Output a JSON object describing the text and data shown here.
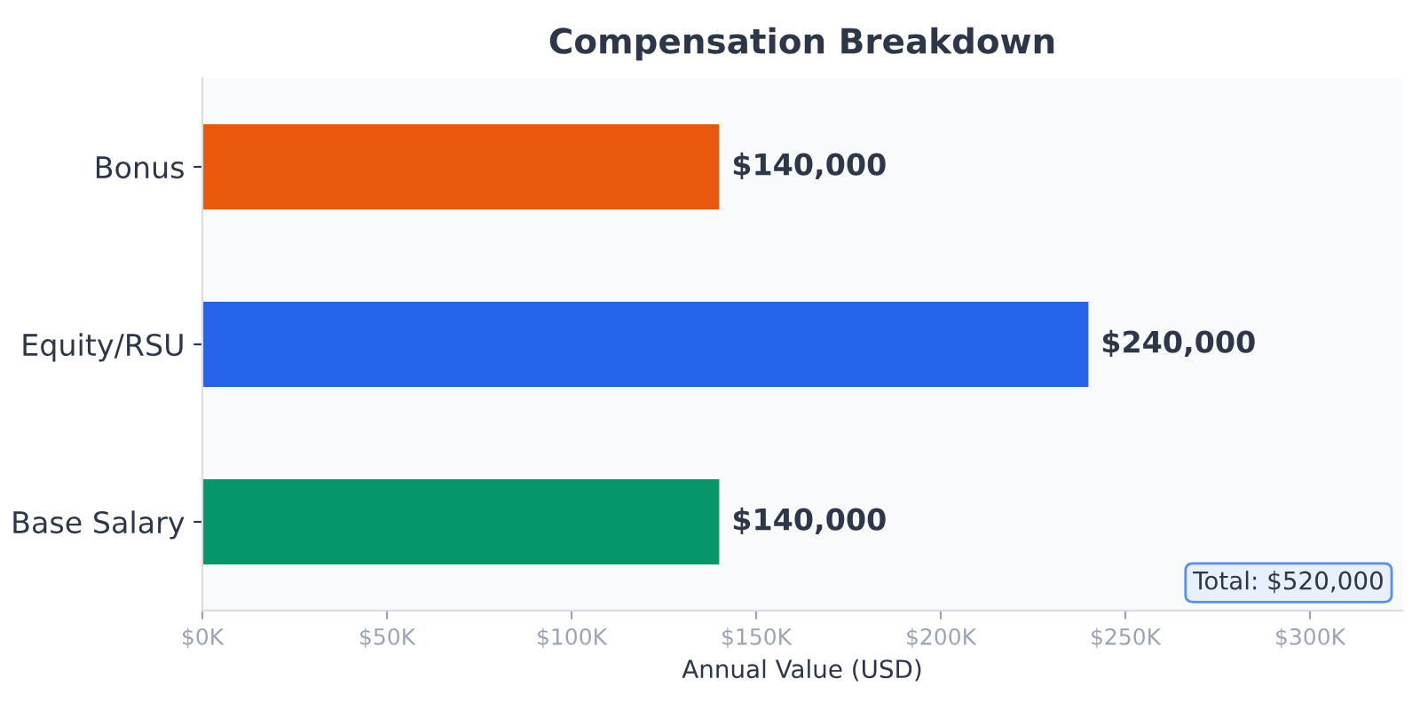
{
  "chart_data": {
    "type": "bar",
    "orientation": "horizontal",
    "title": "Compensation Breakdown",
    "xlabel": "Annual Value (USD)",
    "categories": [
      "Bonus",
      "Equity/RSU",
      "Base Salary"
    ],
    "values": [
      140000,
      240000,
      140000
    ],
    "colors": [
      "#ea580c",
      "#2563eb",
      "#059669"
    ],
    "value_labels": [
      "$140,000",
      "$240,000",
      "$140,000"
    ],
    "xlim": [
      0,
      325000
    ],
    "xticks": [
      {
        "value": 0,
        "label": "$0K"
      },
      {
        "value": 50000,
        "label": "$50K"
      },
      {
        "value": 100000,
        "label": "$100K"
      },
      {
        "value": 150000,
        "label": "$150K"
      },
      {
        "value": 200000,
        "label": "$200K"
      },
      {
        "value": 250000,
        "label": "$250K"
      },
      {
        "value": 300000,
        "label": "$300K"
      }
    ],
    "annotations": [
      "Total: $520,000"
    ],
    "grid": false,
    "legend": false
  }
}
